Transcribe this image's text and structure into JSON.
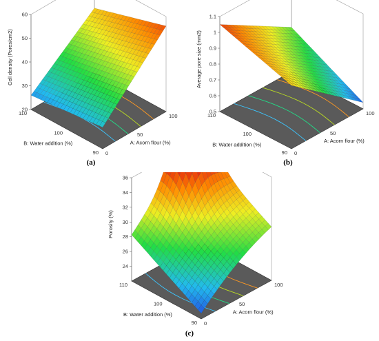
{
  "chart_data": [
    {
      "type": "surface",
      "caption": "(a)",
      "zlabel": "Cell density (Pores/cm2)",
      "xlabel": "A: Acorn flour (%)",
      "ylabel": "B: Water addition (%)",
      "x_ticks": [
        "0",
        "50",
        "100"
      ],
      "y_ticks": [
        "90",
        "100",
        "110"
      ],
      "z_ticks": [
        "20",
        "30",
        "40",
        "50",
        "60"
      ],
      "xlim": [
        0,
        100
      ],
      "ylim": [
        90,
        110
      ],
      "zlim": [
        20,
        60
      ],
      "surface_corners": {
        "A0_B90": 29,
        "A100_B90": 56,
        "A0_B110": 26,
        "A100_B110": 47
      },
      "colormap": [
        "#2233dd",
        "#22bbee",
        "#22dd44",
        "#eeee22",
        "#ff8800",
        "#dd1111"
      ]
    },
    {
      "type": "surface",
      "caption": "(b)",
      "zlabel": "Average pore size (mm2)",
      "xlabel": "A: Acorn flour (%)",
      "ylabel": "B: Water addition (%)",
      "x_ticks": [
        "0",
        "50",
        "100"
      ],
      "y_ticks": [
        "90",
        "100",
        "110"
      ],
      "z_ticks": [
        "0.5",
        "0.6",
        "0.7",
        "0.8",
        "0.9",
        "1",
        "1.1"
      ],
      "xlim": [
        0,
        100
      ],
      "ylim": [
        90,
        110
      ],
      "zlim": [
        0.5,
        1.1
      ],
      "surface_corners": {
        "A0_B90": 0.9,
        "A100_B90": 0.54,
        "A0_B110": 1.05,
        "A100_B110": 0.78
      },
      "colormap": [
        "#2233dd",
        "#22bbee",
        "#22dd44",
        "#eeee22",
        "#ff8800",
        "#dd1111"
      ]
    },
    {
      "type": "surface",
      "caption": "(c)",
      "zlabel": "Porosity (%)",
      "xlabel": "A: Acorn flour (%)",
      "ylabel": "B: Water addition (%)",
      "x_ticks": [
        "0",
        "50",
        "100"
      ],
      "y_ticks": [
        "90",
        "100",
        "110"
      ],
      "z_ticks": [
        "24",
        "26",
        "28",
        "30",
        "32",
        "34",
        "36"
      ],
      "xlim": [
        0,
        100
      ],
      "ylim": [
        90,
        110
      ],
      "zlim": [
        22,
        36
      ],
      "surface_corners": {
        "A0_B90": 23.5,
        "A100_B90": 30,
        "A0_B110": 29,
        "A100_B110": 35.5
      },
      "surface_peak": {
        "A": 70,
        "B": 108,
        "value": 36
      },
      "colormap": [
        "#2233dd",
        "#22bbee",
        "#22dd44",
        "#eeee22",
        "#ff8800",
        "#dd1111"
      ]
    }
  ]
}
